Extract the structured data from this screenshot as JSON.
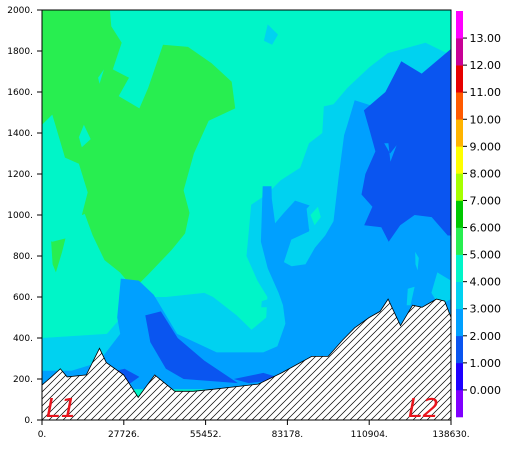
{
  "chart_data": {
    "type": "contour",
    "title": "",
    "xlabel": "",
    "ylabel": "",
    "x_ticks": [
      "0.",
      "27726.",
      "55452.",
      "83178.",
      "110904.",
      "138630."
    ],
    "y_ticks": [
      "0.",
      "200.",
      "400.",
      "600.",
      "800.",
      "1000.",
      "1200.",
      "1400.",
      "1600.",
      "1800.",
      "2000."
    ],
    "xlim": [
      0,
      138630
    ],
    "ylim": [
      0,
      2000
    ],
    "colorbar": {
      "tick_labels": [
        "0.000",
        "1.000",
        "2.000",
        "3.000",
        "4.000",
        "5.000",
        "6.000",
        "7.000",
        "8.000",
        "9.000",
        "10.00",
        "11.00",
        "12.00",
        "13.00"
      ],
      "levels": [
        {
          "lo": -1,
          "hi": 0,
          "color": "#8000ff"
        },
        {
          "lo": 0,
          "hi": 1,
          "color": "#1e00ff"
        },
        {
          "lo": 1,
          "hi": 2,
          "color": "#0a55f0"
        },
        {
          "lo": 2,
          "hi": 3,
          "color": "#00a0ff"
        },
        {
          "lo": 3,
          "hi": 4,
          "color": "#00d2f0"
        },
        {
          "lo": 4,
          "hi": 5,
          "color": "#00f5c8"
        },
        {
          "lo": 5,
          "hi": 6,
          "color": "#28ee50"
        },
        {
          "lo": 6,
          "hi": 7,
          "color": "#00c800"
        },
        {
          "lo": 7,
          "hi": 8,
          "color": "#a6ff00"
        },
        {
          "lo": 8,
          "hi": 9,
          "color": "#ffff00"
        },
        {
          "lo": 9,
          "hi": 10,
          "color": "#ffb400"
        },
        {
          "lo": 10,
          "hi": 11,
          "color": "#ff5a00"
        },
        {
          "lo": 11,
          "hi": 12,
          "color": "#e60000"
        },
        {
          "lo": 12,
          "hi": 13,
          "color": "#c80096"
        },
        {
          "lo": 13,
          "hi": 14,
          "color": "#ff00ff"
        }
      ]
    },
    "background_level": 4,
    "regions": [
      {
        "level": 5,
        "points": [
          [
            0,
            1990
          ],
          [
            0,
            1320
          ],
          [
            800,
            1270
          ],
          [
            1800,
            1090
          ],
          [
            2600,
            980
          ],
          [
            3600,
            760
          ],
          [
            4700,
            720
          ],
          [
            6800,
            820
          ],
          [
            8200,
            900
          ],
          [
            11500,
            990
          ],
          [
            14500,
            1005
          ],
          [
            17200,
            900
          ],
          [
            21200,
            780
          ],
          [
            26400,
            720
          ],
          [
            31200,
            640
          ],
          [
            36000,
            710
          ],
          [
            44000,
            830
          ],
          [
            48500,
            910
          ],
          [
            50000,
            1010
          ],
          [
            48000,
            1120
          ],
          [
            51500,
            1300
          ],
          [
            56500,
            1460
          ],
          [
            65500,
            1520
          ],
          [
            64300,
            1650
          ],
          [
            57500,
            1740
          ],
          [
            49500,
            1820
          ],
          [
            41000,
            1830
          ],
          [
            36000,
            1620
          ],
          [
            33000,
            1520
          ],
          [
            26000,
            1580
          ],
          [
            29500,
            1670
          ],
          [
            24000,
            1710
          ],
          [
            27000,
            1840
          ],
          [
            23500,
            1920
          ],
          [
            23000,
            2000
          ],
          [
            0,
            2000
          ]
        ]
      },
      {
        "level": 4,
        "points": [
          [
            13500,
            1330
          ],
          [
            16500,
            1370
          ],
          [
            14200,
            1440
          ],
          [
            12500,
            1380
          ]
        ]
      },
      {
        "level": 4,
        "points": [
          [
            54500,
            1200
          ],
          [
            59500,
            1260
          ],
          [
            64800,
            1150
          ],
          [
            60300,
            1100
          ],
          [
            55400,
            1150
          ]
        ]
      },
      {
        "level": 4,
        "points": [
          [
            19500,
            1640
          ],
          [
            21000,
            1710
          ],
          [
            19000,
            1670
          ]
        ]
      },
      {
        "level": 4,
        "points": [
          [
            49500,
            1140
          ],
          [
            51000,
            1180
          ],
          [
            49900,
            1190
          ]
        ]
      },
      {
        "level": 3,
        "points": [
          [
            138630,
            1780
          ],
          [
            130000,
            1840
          ],
          [
            117200,
            1790
          ],
          [
            110900,
            1720
          ],
          [
            103500,
            1620
          ],
          [
            98800,
            1540
          ],
          [
            95500,
            1530
          ],
          [
            95000,
            1400
          ],
          [
            90500,
            1350
          ],
          [
            87500,
            1230
          ],
          [
            80900,
            1170
          ],
          [
            76100,
            1100
          ],
          [
            70900,
            1050
          ],
          [
            69300,
            800
          ],
          [
            73000,
            680
          ],
          [
            76400,
            600
          ],
          [
            76000,
            500
          ],
          [
            71000,
            440
          ],
          [
            66000,
            510
          ],
          [
            58000,
            600
          ],
          [
            55000,
            620
          ],
          [
            42000,
            600
          ],
          [
            34500,
            600
          ],
          [
            28000,
            520
          ],
          [
            22000,
            420
          ],
          [
            0,
            400
          ],
          [
            0,
            150
          ],
          [
            138630,
            150
          ]
        ]
      },
      {
        "level": 4,
        "points": [
          [
            0,
            1440
          ],
          [
            3500,
            1490
          ],
          [
            7800,
            1280
          ],
          [
            12500,
            1250
          ],
          [
            15500,
            1110
          ],
          [
            12600,
            950
          ],
          [
            9000,
            890
          ],
          [
            3500,
            870
          ],
          [
            0,
            890
          ]
        ]
      },
      {
        "level": 3,
        "points": [
          [
            115000,
            1530
          ],
          [
            121500,
            1470
          ],
          [
            122000,
            1360
          ],
          [
            114000,
            1340
          ],
          [
            111000,
            1430
          ]
        ]
      },
      {
        "level": 3,
        "points": [
          [
            76500,
            1930
          ],
          [
            80000,
            1880
          ],
          [
            78000,
            1830
          ],
          [
            75200,
            1850
          ]
        ]
      },
      {
        "level": 2,
        "points": [
          [
            138630,
            1490
          ],
          [
            131200,
            1590
          ],
          [
            125000,
            1580
          ],
          [
            118000,
            1610
          ],
          [
            114600,
            1520
          ],
          [
            106000,
            1560
          ],
          [
            103500,
            1440
          ],
          [
            102400,
            1390
          ],
          [
            100500,
            1180
          ],
          [
            98800,
            970
          ],
          [
            96000,
            900
          ],
          [
            92500,
            840
          ],
          [
            89300,
            760
          ],
          [
            84600,
            750
          ],
          [
            82000,
            770
          ],
          [
            84500,
            880
          ],
          [
            90500,
            920
          ],
          [
            92000,
            1040
          ],
          [
            85800,
            1070
          ],
          [
            82000,
            1010
          ],
          [
            79000,
            960
          ],
          [
            77900,
            1080
          ],
          [
            77800,
            1140
          ],
          [
            74800,
            1140
          ],
          [
            74200,
            870
          ],
          [
            76500,
            740
          ],
          [
            80200,
            620
          ],
          [
            81700,
            560
          ],
          [
            82500,
            470
          ],
          [
            79800,
            360
          ],
          [
            75000,
            330
          ],
          [
            59200,
            330
          ],
          [
            45800,
            420
          ],
          [
            37900,
            610
          ],
          [
            32800,
            680
          ],
          [
            26700,
            690
          ],
          [
            25500,
            500
          ],
          [
            26500,
            420
          ],
          [
            19000,
            280
          ],
          [
            10000,
            240
          ],
          [
            0,
            240
          ],
          [
            0,
            150
          ],
          [
            138630,
            150
          ]
        ]
      },
      {
        "level": 3,
        "points": [
          [
            89700,
            1030
          ],
          [
            92300,
            1070
          ],
          [
            95600,
            1000
          ],
          [
            93400,
            920
          ],
          [
            90500,
            930
          ]
        ]
      },
      {
        "level": 4,
        "points": [
          [
            91000,
            1000
          ],
          [
            93500,
            1040
          ],
          [
            94500,
            990
          ],
          [
            92400,
            950
          ]
        ]
      },
      {
        "level": 3,
        "points": [
          [
            138630,
            680
          ],
          [
            134000,
            720
          ],
          [
            132000,
            620
          ],
          [
            134500,
            560
          ],
          [
            138630,
            590
          ]
        ]
      },
      {
        "level": 3,
        "points": [
          [
            126500,
            820
          ],
          [
            127700,
            790
          ],
          [
            127300,
            730
          ],
          [
            126600,
            760
          ]
        ]
      },
      {
        "level": 3,
        "points": [
          [
            124000,
            640
          ],
          [
            126300,
            650
          ],
          [
            124900,
            560
          ],
          [
            123600,
            560
          ]
        ]
      },
      {
        "level": 3,
        "points": [
          [
            74500,
            580
          ],
          [
            76700,
            590
          ],
          [
            76200,
            550
          ],
          [
            74300,
            550
          ]
        ]
      },
      {
        "level": 1,
        "points": [
          [
            138630,
            1810
          ],
          [
            128700,
            1690
          ],
          [
            121800,
            1750
          ],
          [
            116400,
            1600
          ],
          [
            109100,
            1510
          ],
          [
            110900,
            1420
          ],
          [
            113000,
            1310
          ],
          [
            109600,
            1200
          ],
          [
            108300,
            1100
          ],
          [
            112000,
            1040
          ],
          [
            109200,
            950
          ],
          [
            115000,
            940
          ],
          [
            117500,
            870
          ],
          [
            121400,
            950
          ],
          [
            126300,
            1000
          ],
          [
            132100,
            990
          ],
          [
            137500,
            900
          ],
          [
            138630,
            900
          ]
        ]
      },
      {
        "level": 2,
        "points": [
          [
            116000,
            1350
          ],
          [
            118000,
            1300
          ],
          [
            120200,
            1340
          ],
          [
            118100,
            1260
          ],
          [
            117400,
            1350
          ]
        ]
      },
      {
        "level": 1,
        "points": [
          [
            35000,
            510
          ],
          [
            40300,
            530
          ],
          [
            46000,
            400
          ],
          [
            55000,
            290
          ],
          [
            66400,
            180
          ],
          [
            48000,
            200
          ],
          [
            42000,
            250
          ],
          [
            36700,
            380
          ]
        ]
      },
      {
        "level": 1,
        "points": [
          [
            22000,
            230
          ],
          [
            28000,
            250
          ],
          [
            33000,
            210
          ],
          [
            30000,
            180
          ],
          [
            25000,
            180
          ]
        ]
      },
      {
        "level": 1,
        "points": [
          [
            65000,
            200
          ],
          [
            75000,
            230
          ],
          [
            82000,
            200
          ],
          [
            70000,
            180
          ]
        ]
      }
    ],
    "terrain_km": [
      [
        0,
        170
      ],
      [
        3200,
        210
      ],
      [
        6200,
        250
      ],
      [
        8500,
        210
      ],
      [
        15000,
        220
      ],
      [
        19500,
        350
      ],
      [
        21800,
        280
      ],
      [
        27700,
        220
      ],
      [
        32600,
        110
      ],
      [
        38200,
        220
      ],
      [
        45000,
        140
      ],
      [
        51200,
        140
      ],
      [
        57900,
        150
      ],
      [
        73300,
        175
      ],
      [
        81200,
        230
      ],
      [
        91400,
        310
      ],
      [
        97000,
        310
      ],
      [
        101900,
        390
      ],
      [
        106000,
        450
      ],
      [
        110900,
        500
      ],
      [
        114600,
        530
      ],
      [
        117300,
        590
      ],
      [
        121500,
        460
      ],
      [
        125600,
        560
      ],
      [
        128800,
        550
      ],
      [
        133700,
        590
      ],
      [
        136500,
        580
      ],
      [
        138630,
        500
      ]
    ],
    "annotations": [
      {
        "text": "L1",
        "position": "bottom-left"
      },
      {
        "text": "L2",
        "position": "bottom-right"
      }
    ]
  }
}
